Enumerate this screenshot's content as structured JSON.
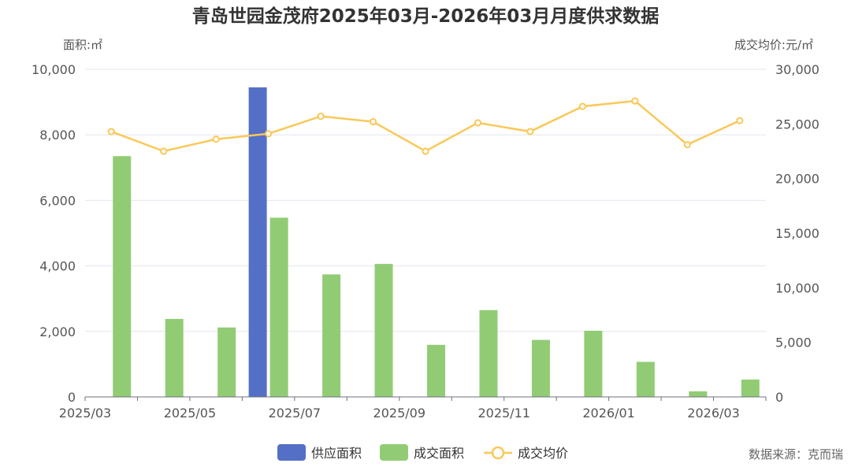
{
  "chart_data": {
    "type": "bar",
    "title": "青岛世园金茂府2025年03月-2026年03月月度供求数据",
    "y_left_label": "面积:㎡",
    "y_right_label": "成交均价:元/㎡",
    "y_left_range": [
      0,
      10000
    ],
    "y_right_range": [
      0,
      30000
    ],
    "y_left_ticks": [
      "0",
      "2,000",
      "4,000",
      "6,000",
      "8,000",
      "10,000"
    ],
    "y_right_ticks": [
      "0",
      "5,000",
      "10,000",
      "15,000",
      "20,000",
      "25,000",
      "30,000"
    ],
    "categories": [
      "2025/03",
      "2025/04",
      "2025/05",
      "2025/06",
      "2025/07",
      "2025/08",
      "2025/09",
      "2025/10",
      "2025/11",
      "2025/12",
      "2026/01",
      "2026/02",
      "2026/03"
    ],
    "x_tick_labels": [
      "2025/03",
      "2025/05",
      "2025/07",
      "2025/09",
      "2025/11",
      "2026/01",
      "2026/03"
    ],
    "series": [
      {
        "name": "供应面积",
        "type": "bar",
        "axis": "left",
        "color": "#5470c6",
        "values": [
          0,
          0,
          0,
          9450,
          0,
          0,
          0,
          0,
          0,
          0,
          0,
          0,
          0
        ]
      },
      {
        "name": "成交面积",
        "type": "bar",
        "axis": "left",
        "color": "#91cc75",
        "values": [
          7350,
          2380,
          2120,
          5470,
          3740,
          4060,
          1590,
          2650,
          1740,
          2020,
          1070,
          170,
          530
        ]
      },
      {
        "name": "成交均价",
        "type": "line",
        "axis": "right",
        "color": "#fac858",
        "values": [
          24300,
          22500,
          23600,
          24100,
          25700,
          25200,
          22500,
          25100,
          24300,
          26600,
          27100,
          23100,
          25300
        ]
      }
    ],
    "grid": true,
    "legend_position": "bottom-center"
  },
  "source_text": "数据来源：克而瑞"
}
